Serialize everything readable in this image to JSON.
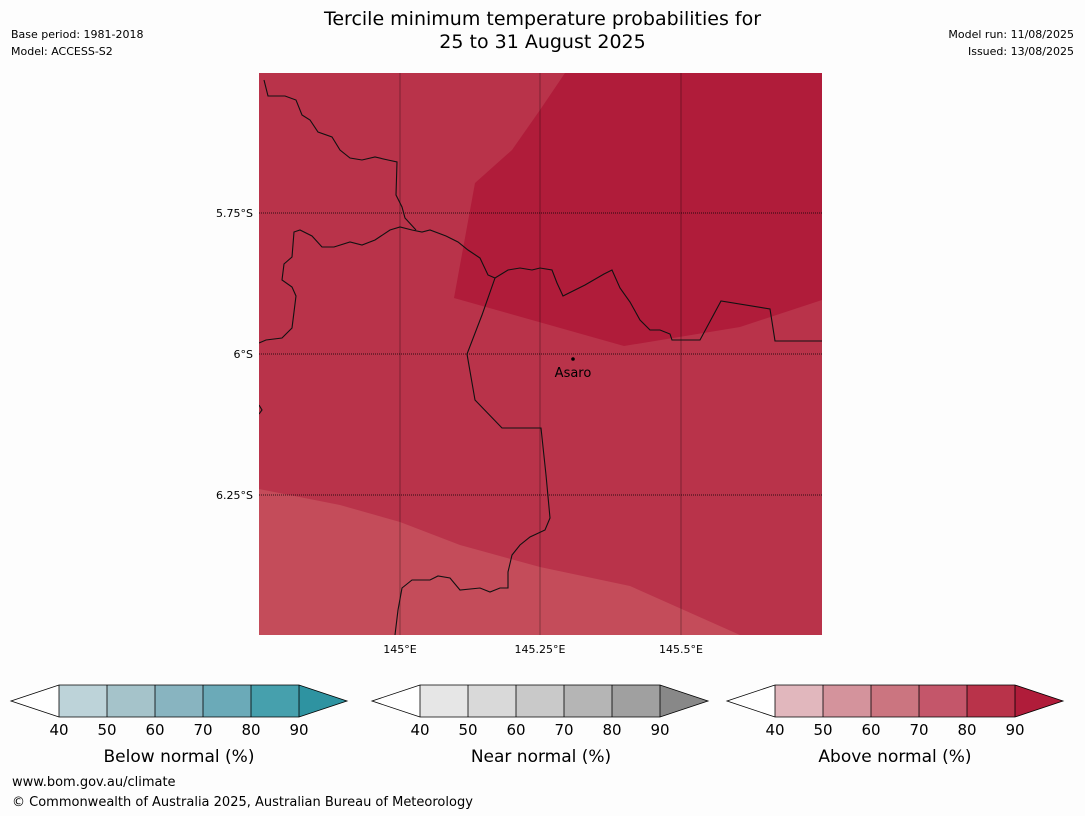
{
  "title_line1": "Tercile minimum temperature probabilities for",
  "title_line2": "25 to 31 August 2025",
  "base_period": "Base period: 1981-2018",
  "model": "Model: ACCESS-S2",
  "model_run": "Model run: 11/08/2025",
  "issued": "Issued: 13/08/2025",
  "map": {
    "lat_labels": [
      "5.75°S",
      "6°S",
      "6.25°S"
    ],
    "lon_labels": [
      "145°E",
      "145.25°E",
      "145.5°E"
    ],
    "place_label": "Asaro",
    "colors": {
      "above_70_80": "#c44c5a",
      "above_80_90": "#b9334a",
      "above_90_plus": "#b01c3a"
    }
  },
  "colorbars": [
    {
      "label": "Below normal (%)",
      "ticks": [
        "40",
        "50",
        "60",
        "70",
        "80",
        "90"
      ],
      "colors": [
        "#ffffff",
        "#bdd3d9",
        "#a5c3ca",
        "#88b4c0",
        "#6baab8",
        "#46a0ad",
        "#2e93a1"
      ]
    },
    {
      "label": "Near normal (%)",
      "ticks": [
        "40",
        "50",
        "60",
        "70",
        "80",
        "90"
      ],
      "colors": [
        "#ffffff",
        "#e6e6e6",
        "#d9d9d9",
        "#c9c9c9",
        "#b5b5b5",
        "#a0a0a0",
        "#888888"
      ]
    },
    {
      "label": "Above normal (%)",
      "ticks": [
        "40",
        "50",
        "60",
        "70",
        "80",
        "90"
      ],
      "colors": [
        "#ffffff",
        "#e1b7bd",
        "#d4939c",
        "#cb7580",
        "#c4566a",
        "#b9334a",
        "#b01c3a"
      ]
    }
  ],
  "footer_url": "www.bom.gov.au/climate",
  "footer_copyright": "© Commonwealth of Australia 2025, Australian Bureau of Meteorology"
}
